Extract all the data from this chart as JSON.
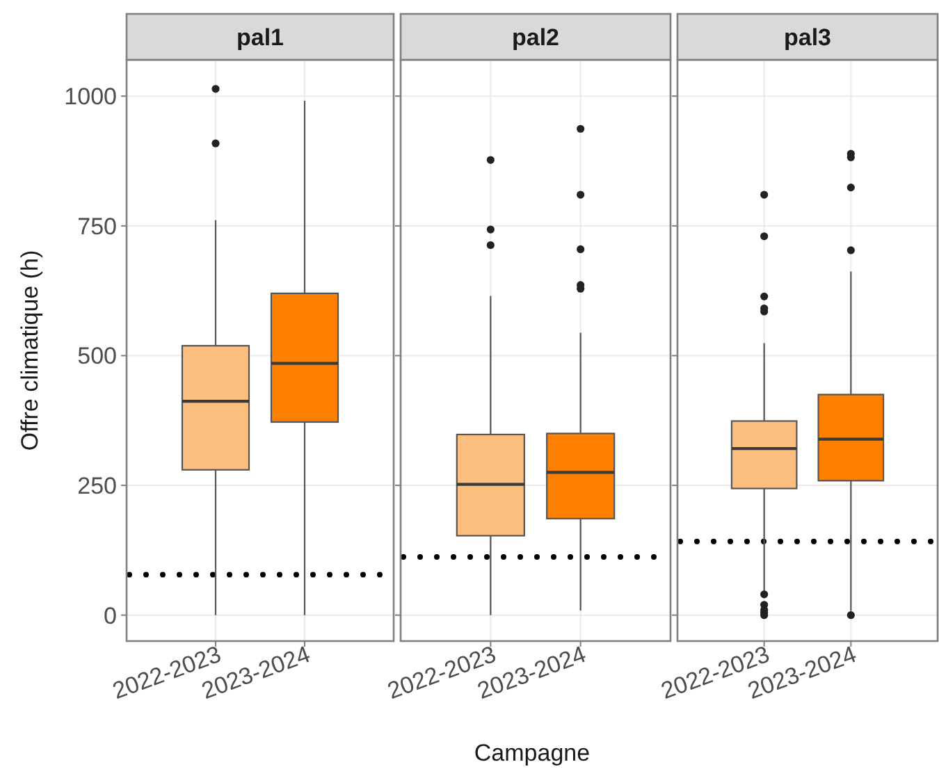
{
  "chart_data": [
    {
      "type": "box",
      "title": "pal1",
      "ylabel": "Offre climatique (h)",
      "categories": [
        "2022-2023",
        "2023-2024"
      ],
      "colors": [
        "#fdbf80",
        "#ff7f00"
      ],
      "ylim": [
        -50,
        1070
      ],
      "yticks": [
        0,
        250,
        500,
        750,
        1000
      ],
      "grid": true,
      "boxes": [
        {
          "low": 0,
          "q1": 280,
          "median": 412,
          "q3": 519,
          "high": 761,
          "outliers": [
            909,
            1014
          ]
        },
        {
          "low": 0,
          "q1": 372,
          "median": 485,
          "q3": 620,
          "high": 991
        }
      ],
      "ref_lines": [
        {
          "axis": "y",
          "value": 78,
          "color": "#000000",
          "line_style": "dotted"
        }
      ]
    },
    {
      "type": "box",
      "title": "pal2",
      "xlabel": "Campagne",
      "categories": [
        "2022-2023",
        "2023-2024"
      ],
      "colors": [
        "#fdbf80",
        "#ff7f00"
      ],
      "ylim": [
        -50,
        1070
      ],
      "yticks": [
        0,
        250,
        500,
        750,
        1000
      ],
      "grid": true,
      "tick_labels": "x",
      "boxes": [
        {
          "low": 0,
          "q1": 153,
          "median": 252,
          "q3": 348,
          "high": 615,
          "outliers": [
            713,
            743,
            877
          ]
        },
        {
          "low": 9,
          "q1": 186,
          "median": 275,
          "q3": 350,
          "high": 544,
          "outliers": [
            629,
            636,
            705,
            810,
            937
          ]
        }
      ],
      "ref_lines": [
        {
          "axis": "y",
          "value": 112,
          "color": "#000000",
          "line_style": "dotted"
        }
      ]
    },
    {
      "type": "box",
      "title": "pal3",
      "categories": [
        "2022-2023",
        "2023-2024"
      ],
      "colors": [
        "#fdbf80",
        "#ff7f00"
      ],
      "ylim": [
        -50,
        1070
      ],
      "yticks": [
        0,
        250,
        500,
        750,
        1000
      ],
      "grid": true,
      "tick_labels": "x",
      "boxes": [
        {
          "low": 45,
          "q1": 244,
          "median": 321,
          "q3": 374,
          "high": 524,
          "outliers": [
            0,
            5,
            10,
            20,
            40,
            585,
            591,
            614,
            730,
            810
          ]
        },
        {
          "low": 8,
          "q1": 259,
          "median": 339,
          "q3": 425,
          "high": 662,
          "outliers": [
            0,
            703,
            824,
            882,
            889
          ]
        }
      ],
      "ref_lines": [
        {
          "axis": "y",
          "value": 142,
          "color": "#000000",
          "line_style": "dotted"
        }
      ]
    }
  ]
}
